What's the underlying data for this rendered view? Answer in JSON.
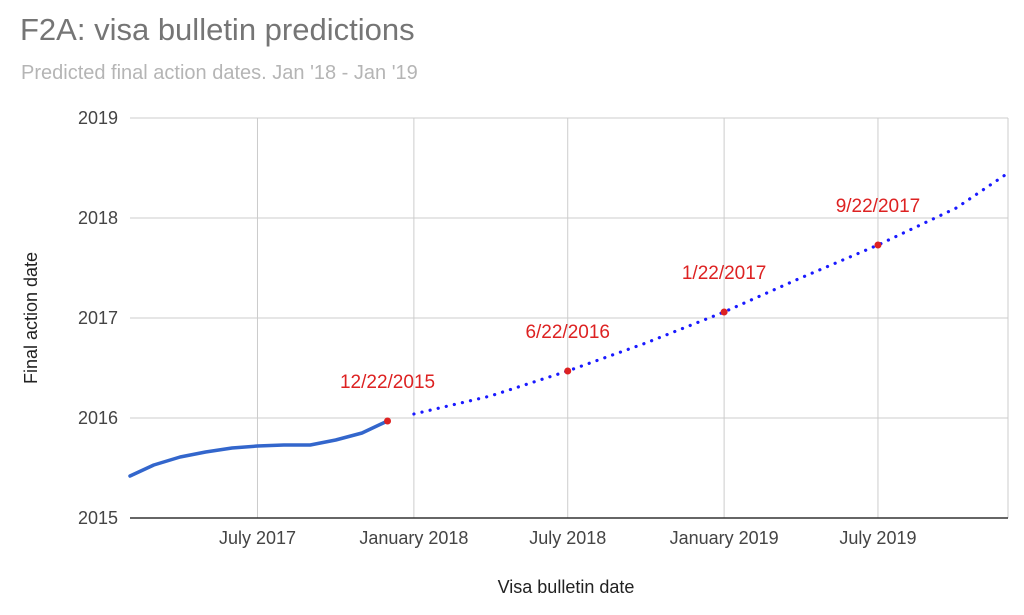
{
  "chart_data": {
    "type": "line",
    "title": "F2A: visa bulletin predictions",
    "subtitle": "Predicted final action dates. Jan '18 -  Jan '19",
    "xlabel": "Visa bulletin date",
    "ylabel": "Final action date",
    "xlim": [
      "2017-02-01",
      "2019-12-01"
    ],
    "ylim": [
      2015,
      2019
    ],
    "x_ticks": [
      {
        "label": "July 2017",
        "value": "2017-07-01"
      },
      {
        "label": "January 2018",
        "value": "2018-01-01"
      },
      {
        "label": "July 2018",
        "value": "2018-07-01"
      },
      {
        "label": "January 2019",
        "value": "2019-01-01"
      },
      {
        "label": "July 2019",
        "value": "2019-07-01"
      }
    ],
    "x_gridlines": [
      "2017-07-01",
      "2018-01-01",
      "2018-07-01",
      "2019-01-01",
      "2019-07-01",
      "2020-01-01"
    ],
    "y_ticks": [
      2015,
      2016,
      2017,
      2018,
      2019
    ],
    "grid": true,
    "legend": "none",
    "series": [
      {
        "style": "solid",
        "color": "#3366cc",
        "points": [
          {
            "x": "2017-02-01",
            "y": 2015.42
          },
          {
            "x": "2017-03-01",
            "y": 2015.53
          },
          {
            "x": "2017-04-01",
            "y": 2015.61
          },
          {
            "x": "2017-05-01",
            "y": 2015.66
          },
          {
            "x": "2017-06-01",
            "y": 2015.7
          },
          {
            "x": "2017-07-01",
            "y": 2015.72
          },
          {
            "x": "2017-08-01",
            "y": 2015.73
          },
          {
            "x": "2017-09-01",
            "y": 2015.73
          },
          {
            "x": "2017-10-01",
            "y": 2015.78
          },
          {
            "x": "2017-11-01",
            "y": 2015.85
          },
          {
            "x": "2017-12-01",
            "y": 2015.97
          }
        ]
      },
      {
        "style": "dotted",
        "color": "#1a1aff",
        "points": [
          {
            "x": "2018-01-01",
            "y": 2016.04
          },
          {
            "x": "2018-04-01",
            "y": 2016.22
          },
          {
            "x": "2018-07-01",
            "y": 2016.47
          },
          {
            "x": "2018-10-01",
            "y": 2016.75
          },
          {
            "x": "2019-01-01",
            "y": 2017.06
          },
          {
            "x": "2019-04-01",
            "y": 2017.4
          },
          {
            "x": "2019-07-01",
            "y": 2017.73
          },
          {
            "x": "2019-10-01",
            "y": 2018.1
          },
          {
            "x": "2019-12-01",
            "y": 2018.45
          }
        ]
      }
    ],
    "annotations": [
      {
        "x": "2017-12-01",
        "y": 2015.97,
        "label": "12/22/2015"
      },
      {
        "x": "2018-07-01",
        "y": 2016.47,
        "label": "6/22/2016"
      },
      {
        "x": "2019-01-01",
        "y": 2017.06,
        "label": "1/22/2017"
      },
      {
        "x": "2019-07-01",
        "y": 2017.73,
        "label": "9/22/2017"
      }
    ],
    "colors": {
      "grid": "#cccccc",
      "axis": "#333333",
      "annotation": "#dd2222"
    }
  }
}
